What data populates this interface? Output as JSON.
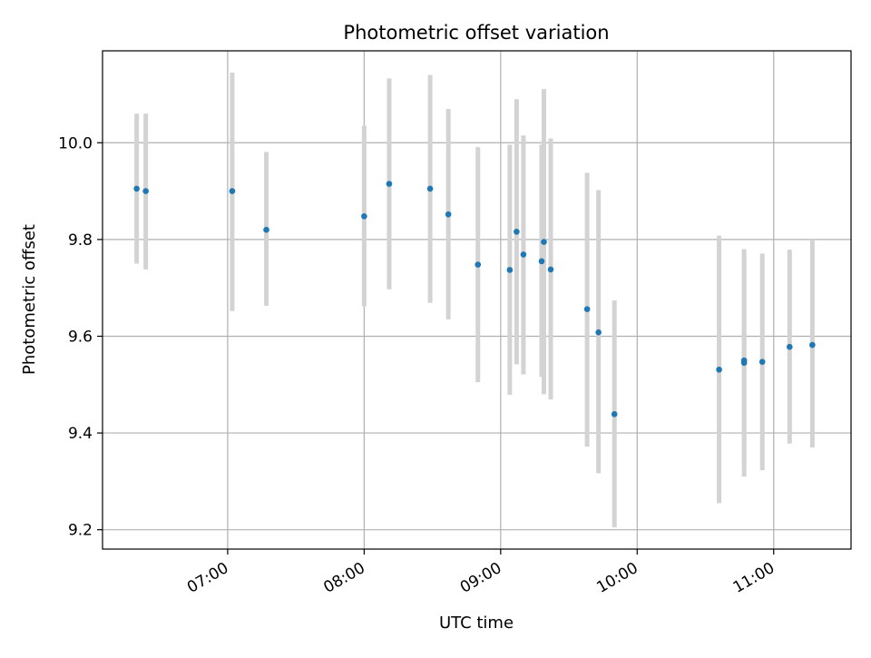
{
  "chart_data": {
    "type": "scatter",
    "title": "Photometric offset variation",
    "xlabel": "UTC time",
    "ylabel": "Photometric offset",
    "x_axis": {
      "kind": "time",
      "min": "06:05",
      "max": "11:34"
    },
    "ylim": [
      9.16,
      10.19
    ],
    "xticks": [
      "07:00",
      "08:00",
      "09:00",
      "10:00",
      "11:00"
    ],
    "yticks": [
      "9.2",
      "9.4",
      "9.6",
      "9.8",
      "10.0"
    ],
    "grid": true,
    "marker_color": "#1f77b4",
    "errorbar_color": "#d3d3d3",
    "points": [
      {
        "t": "06:20",
        "y": 9.905,
        "lo": 9.75,
        "hi": 10.06
      },
      {
        "t": "06:24",
        "y": 9.9,
        "lo": 9.738,
        "hi": 10.06
      },
      {
        "t": "07:02",
        "y": 9.9,
        "lo": 9.652,
        "hi": 10.145
      },
      {
        "t": "07:17",
        "y": 9.82,
        "lo": 9.663,
        "hi": 9.981
      },
      {
        "t": "08:00",
        "y": 9.848,
        "lo": 9.662,
        "hi": 10.035
      },
      {
        "t": "08:11",
        "y": 9.915,
        "lo": 9.697,
        "hi": 10.133
      },
      {
        "t": "08:29",
        "y": 9.905,
        "lo": 9.669,
        "hi": 10.14
      },
      {
        "t": "08:37",
        "y": 9.852,
        "lo": 9.635,
        "hi": 10.07
      },
      {
        "t": "08:50",
        "y": 9.748,
        "lo": 9.505,
        "hi": 9.991
      },
      {
        "t": "09:04",
        "y": 9.737,
        "lo": 9.479,
        "hi": 9.996
      },
      {
        "t": "09:07",
        "y": 9.816,
        "lo": 9.542,
        "hi": 10.09
      },
      {
        "t": "09:10",
        "y": 9.769,
        "lo": 9.521,
        "hi": 10.015
      },
      {
        "t": "09:18",
        "y": 9.755,
        "lo": 9.516,
        "hi": 9.996
      },
      {
        "t": "09:19",
        "y": 9.795,
        "lo": 9.48,
        "hi": 10.111
      },
      {
        "t": "09:22",
        "y": 9.738,
        "lo": 9.469,
        "hi": 10.009
      },
      {
        "t": "09:38",
        "y": 9.656,
        "lo": 9.372,
        "hi": 9.938
      },
      {
        "t": "09:43",
        "y": 9.608,
        "lo": 9.317,
        "hi": 9.902
      },
      {
        "t": "09:50",
        "y": 9.439,
        "lo": 9.205,
        "hi": 9.674
      },
      {
        "t": "10:36",
        "y": 9.531,
        "lo": 9.255,
        "hi": 9.808
      },
      {
        "t": "10:47",
        "y": 9.55,
        "lo": 9.34,
        "hi": 9.76
      },
      {
        "t": "10:47",
        "y": 9.545,
        "lo": 9.31,
        "hi": 9.78
      },
      {
        "t": "10:55",
        "y": 9.547,
        "lo": 9.323,
        "hi": 9.771
      },
      {
        "t": "11:07",
        "y": 9.578,
        "lo": 9.378,
        "hi": 9.779
      },
      {
        "t": "11:17",
        "y": 9.582,
        "lo": 9.37,
        "hi": 9.8
      }
    ]
  }
}
